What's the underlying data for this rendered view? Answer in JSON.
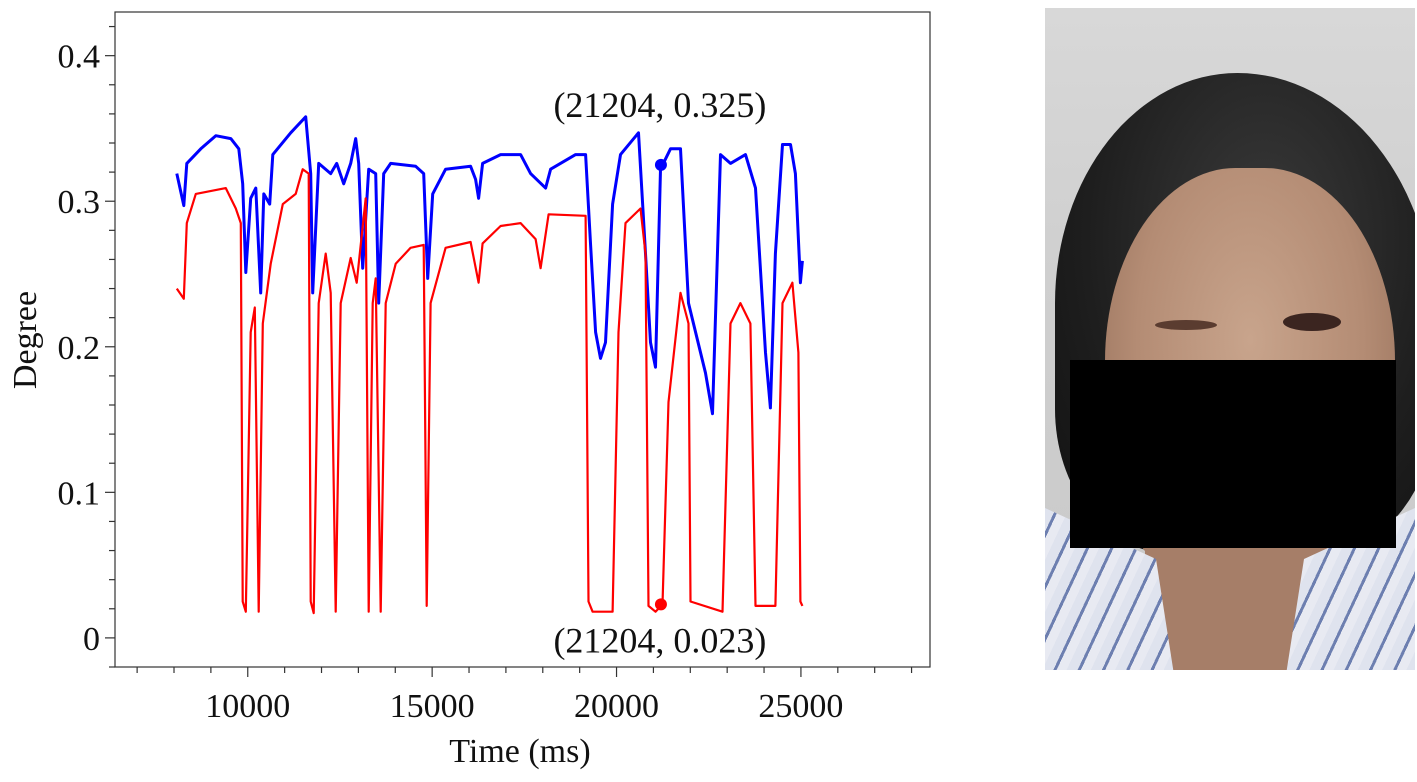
{
  "chart_data": {
    "type": "line",
    "xlabel": "Time (ms)",
    "ylabel": "Degree",
    "xlim": [
      6400,
      28500
    ],
    "ylim": [
      -0.02,
      0.43
    ],
    "xticks": [
      10000,
      15000,
      20000,
      25000
    ],
    "xtick_labels": [
      "10000",
      "15000",
      "20000",
      "25000"
    ],
    "yticks": [
      0,
      0.1,
      0.2,
      0.3,
      0.4
    ],
    "ytick_labels": [
      "0",
      "0.1",
      "0.2",
      "0.3",
      "0.4"
    ],
    "grid": false,
    "legend": "none",
    "series": [
      {
        "color": "#0000ff",
        "x": [
          8076,
          8266,
          8347,
          8726,
          9133,
          9539,
          9756,
          9864,
          9946,
          10081,
          10217,
          10352,
          10434,
          10596,
          10678,
          11165,
          11572,
          11707,
          11762,
          11924,
          12249,
          12412,
          12602,
          12791,
          12927,
          13008,
          13117,
          13280,
          13469,
          13550,
          13686,
          13875,
          14553,
          14770,
          14878,
          15014,
          15366,
          16043,
          16179,
          16260,
          16369,
          16856,
          17398,
          17669,
          18076,
          18211,
          18889,
          19160,
          19295,
          19431,
          19566,
          19702,
          19892,
          20108,
          20596,
          20786,
          20921,
          21057,
          21192,
          21463,
          21734,
          21951,
          22412,
          22602,
          22818,
          23089,
          23496,
          23767,
          24038,
          24173,
          24309,
          24499,
          24716,
          24851,
          24986,
          25041
        ],
        "y": [
          0.319,
          0.297,
          0.326,
          0.336,
          0.345,
          0.343,
          0.336,
          0.312,
          0.251,
          0.302,
          0.309,
          0.237,
          0.305,
          0.298,
          0.332,
          0.347,
          0.358,
          0.319,
          0.237,
          0.326,
          0.319,
          0.326,
          0.312,
          0.326,
          0.343,
          0.326,
          0.254,
          0.322,
          0.319,
          0.23,
          0.319,
          0.326,
          0.324,
          0.319,
          0.247,
          0.305,
          0.322,
          0.324,
          0.315,
          0.302,
          0.326,
          0.332,
          0.332,
          0.319,
          0.309,
          0.322,
          0.332,
          0.332,
          0.271,
          0.21,
          0.192,
          0.203,
          0.298,
          0.332,
          0.347,
          0.264,
          0.203,
          0.186,
          0.322,
          0.336,
          0.336,
          0.23,
          0.182,
          0.154,
          0.332,
          0.326,
          0.332,
          0.309,
          0.196,
          0.158,
          0.264,
          0.339,
          0.339,
          0.319,
          0.244,
          0.259
        ]
      },
      {
        "color": "#ff0000",
        "x": [
          8076,
          8266,
          8347,
          8591,
          9404,
          9675,
          9810,
          9864,
          9946,
          10081,
          10190,
          10298,
          10407,
          10623,
          10949,
          11301,
          11491,
          11653,
          11707,
          11789,
          11924,
          12114,
          12249,
          12385,
          12520,
          12791,
          12954,
          13198,
          13280,
          13388,
          13469,
          13604,
          13740,
          14011,
          14417,
          14770,
          14851,
          14959,
          15366,
          16043,
          16260,
          16369,
          16856,
          17398,
          17804,
          17940,
          18157,
          19160,
          19241,
          19350,
          19892,
          20054,
          20244,
          20650,
          20786,
          20867,
          21057,
          21247,
          21409,
          21734,
          21951,
          22005,
          22873,
          23089,
          23360,
          23631,
          23767,
          24309,
          24499,
          24770,
          24932,
          24986,
          25041
        ],
        "y": [
          0.24,
          0.233,
          0.285,
          0.305,
          0.309,
          0.295,
          0.285,
          0.025,
          0.018,
          0.21,
          0.227,
          0.018,
          0.216,
          0.257,
          0.298,
          0.305,
          0.322,
          0.319,
          0.025,
          0.017,
          0.23,
          0.264,
          0.237,
          0.018,
          0.23,
          0.261,
          0.244,
          0.302,
          0.018,
          0.23,
          0.247,
          0.018,
          0.23,
          0.257,
          0.268,
          0.27,
          0.022,
          0.23,
          0.268,
          0.272,
          0.244,
          0.271,
          0.283,
          0.285,
          0.274,
          0.254,
          0.291,
          0.29,
          0.025,
          0.018,
          0.018,
          0.21,
          0.285,
          0.295,
          0.264,
          0.022,
          0.018,
          0.023,
          0.162,
          0.237,
          0.216,
          0.025,
          0.018,
          0.216,
          0.23,
          0.216,
          0.022,
          0.022,
          0.23,
          0.244,
          0.196,
          0.025,
          0.022
        ]
      }
    ],
    "annotations": [
      {
        "x": 21204,
        "y": 0.325,
        "label": "(21204, 0.325)",
        "color": "#0000ff"
      },
      {
        "x": 21204,
        "y": 0.023,
        "label": "(21204, 0.023)",
        "color": "#ff0000"
      }
    ]
  },
  "photo": {
    "description_icon": "patient-face-photo"
  }
}
